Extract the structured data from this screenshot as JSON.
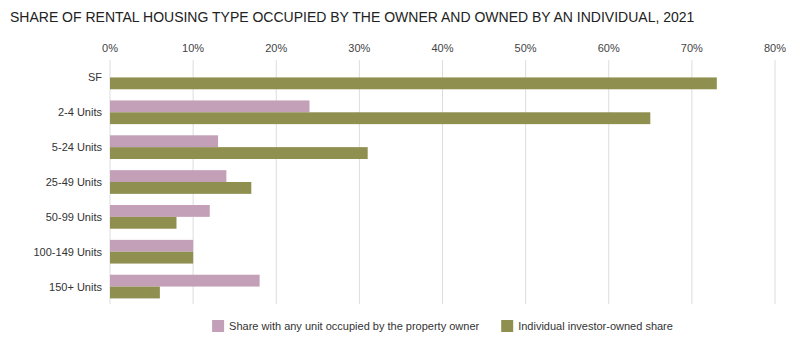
{
  "chart_data": {
    "type": "bar",
    "orientation": "horizontal",
    "title": "SHARE OF RENTAL HOUSING TYPE OCCUPIED BY THE OWNER AND OWNED BY AN INDIVIDUAL, 2021",
    "categories": [
      "SF",
      "2-4 Units",
      "5-24 Units",
      "25-49 Units",
      "50-99 Units",
      "100-149 Units",
      "150+ Units"
    ],
    "series": [
      {
        "name": "Share with any unit occupied by the property owner",
        "color": "#c4a0b8",
        "values": [
          0,
          24,
          13,
          14,
          12,
          10,
          18
        ]
      },
      {
        "name": "Individual investor-owned share",
        "color": "#8f9050",
        "values": [
          73,
          65,
          31,
          17,
          8,
          10,
          6
        ]
      }
    ],
    "xlim": [
      0,
      80
    ],
    "xticks": [
      {
        "value": 0,
        "label": "0%"
      },
      {
        "value": 10,
        "label": "10%"
      },
      {
        "value": 20,
        "label": "20%"
      },
      {
        "value": 30,
        "label": "30%"
      },
      {
        "value": 40,
        "label": "40%"
      },
      {
        "value": 50,
        "label": "50%"
      },
      {
        "value": 60,
        "label": "60%"
      },
      {
        "value": 70,
        "label": "70%"
      },
      {
        "value": 80,
        "label": "80%"
      }
    ],
    "grid": true,
    "legend": "bottom"
  }
}
